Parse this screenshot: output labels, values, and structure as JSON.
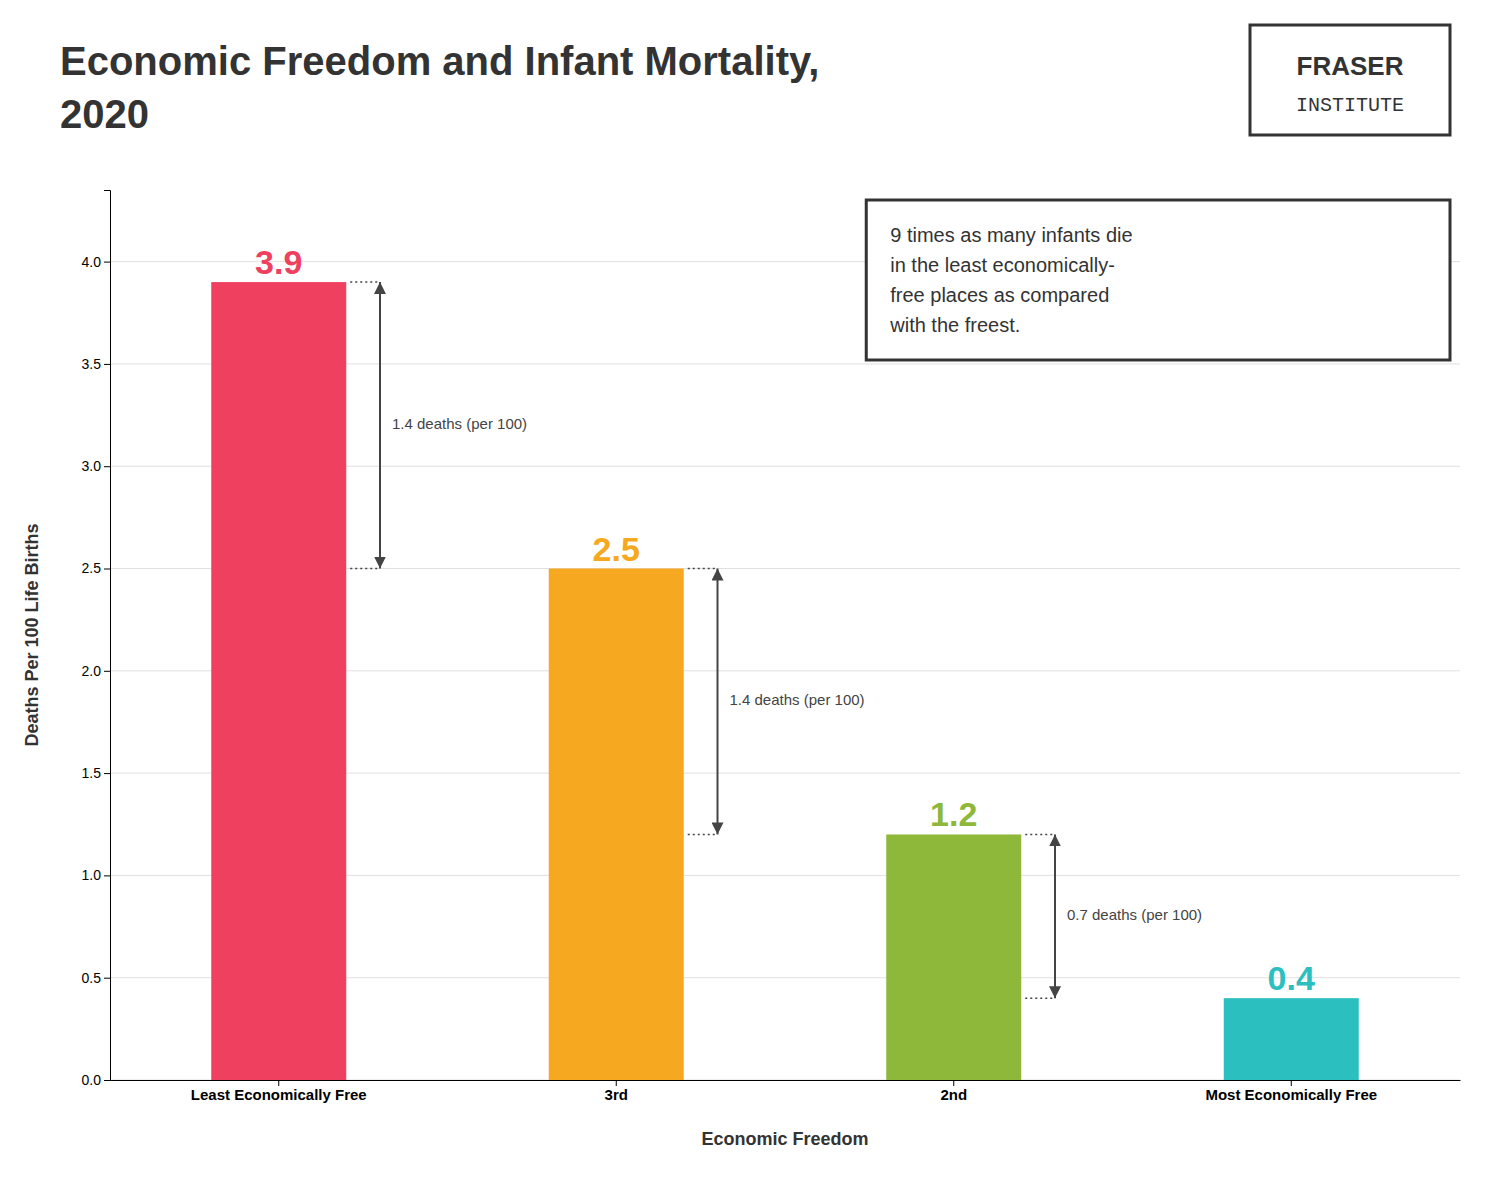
{
  "chart_data": {
    "type": "bar",
    "title": "Economic Freedom and Infant Mortality,",
    "subtitle": "2020",
    "categories": [
      "Least Economically Free",
      "3rd",
      "2nd",
      "Most Economically Free"
    ],
    "values": [
      3.9,
      2.5,
      1.2,
      0.4
    ],
    "colors": [
      "#f04060",
      "#f5a820",
      "#8db83a",
      "#2bbfbf"
    ],
    "data_labels": true,
    "x_label": "Economic Freedom",
    "y_label": "Deaths Per 100 Life Births",
    "ylim": [
      0,
      4.35
    ],
    "yticks": [
      {
        "value": 0.0,
        "label": "0.0"
      },
      0.5,
      {
        "value": 1.0,
        "label": "1.0"
      },
      1.5,
      {
        "value": 2.0,
        "label": "2.0"
      },
      2.5,
      {
        "value": 3.0,
        "label": "3.0"
      },
      3.5,
      {
        "value": 4.0,
        "label": "4.0"
      }
    ],
    "grid": true,
    "annotations": [
      {
        "label": "1.4 deaths (per 100)",
        "y1": 3.9,
        "y2": 2.5
      },
      {
        "label": "1.4 deaths (per 100)",
        "y1": 2.5,
        "y2": 1.2
      },
      {
        "label": "0.7 deaths (per 100)",
        "y1": 1.2,
        "y2": 0.4
      }
    ],
    "note": "9 times as many infants die\nin the least economically-\nfree places as compared\nwith the freest.",
    "logo_text": [
      "FRASER",
      "INSTITUTE"
    ]
  }
}
